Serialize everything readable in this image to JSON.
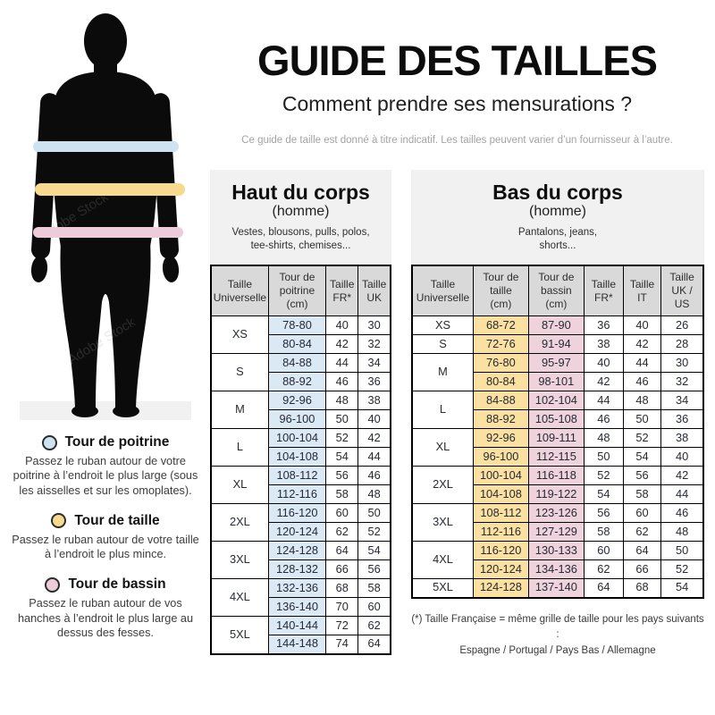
{
  "watermark": "Adobe Stock",
  "header": {
    "title": "GUIDE DES TAILLES",
    "subtitle": "Comment prendre ses mensurations ?",
    "disclaimer": "Ce guide de taille est donné à titre indicatif. Les tailles peuvent varier d’un fournisseur à l’autre."
  },
  "colors": {
    "band_chest": "#cde3f1",
    "band_waist": "#f8da8e",
    "band_hips": "#ecccd8",
    "cell_chest": "#dbe9f5",
    "cell_waist": "#fbe1a1",
    "cell_hips": "#eed2dc",
    "header_gray": "#d9d9d9",
    "panel_gray": "#f1f1f1"
  },
  "legend": [
    {
      "title": "Tour de poitrine",
      "color": "#cde3f1",
      "text": "Passez le ruban autour de votre poitrine à l’endroit le plus large (sous les aisselles et sur les omoplates)."
    },
    {
      "title": "Tour de taille",
      "color": "#f8da8e",
      "text": "Passez le ruban autour de votre taille à l’endroit le plus mince."
    },
    {
      "title": "Tour de bassin",
      "color": "#ecccd8",
      "text": "Passez le ruban autour de vos hanches à l’endroit le plus large au dessus des fesses."
    }
  ],
  "tables": {
    "upper": {
      "title": "Haut du corps",
      "gender": "(homme)",
      "description": "Vestes, blousons, pulls, polos,\ntee-shirts, chemises...",
      "columns": [
        "Taille\nUniverselle",
        "Tour de\npoitrine\n(cm)",
        "Taille\nFR*",
        "Taille\nUK"
      ],
      "col_widths": [
        "32%",
        "32%",
        "18%",
        "18%"
      ],
      "col_classes": [
        "",
        "bg-chest",
        "",
        ""
      ],
      "groups": [
        {
          "size": "XS",
          "rows": [
            [
              "78-80",
              "40",
              "30"
            ],
            [
              "80-84",
              "42",
              "32"
            ]
          ]
        },
        {
          "size": "S",
          "rows": [
            [
              "84-88",
              "44",
              "34"
            ],
            [
              "88-92",
              "46",
              "36"
            ]
          ]
        },
        {
          "size": "M",
          "rows": [
            [
              "92-96",
              "48",
              "38"
            ],
            [
              "96-100",
              "50",
              "40"
            ]
          ]
        },
        {
          "size": "L",
          "rows": [
            [
              "100-104",
              "52",
              "42"
            ],
            [
              "104-108",
              "54",
              "44"
            ]
          ]
        },
        {
          "size": "XL",
          "rows": [
            [
              "108-112",
              "56",
              "46"
            ],
            [
              "112-116",
              "58",
              "48"
            ]
          ]
        },
        {
          "size": "2XL",
          "rows": [
            [
              "116-120",
              "60",
              "50"
            ],
            [
              "120-124",
              "62",
              "52"
            ]
          ]
        },
        {
          "size": "3XL",
          "rows": [
            [
              "124-128",
              "64",
              "54"
            ],
            [
              "128-132",
              "66",
              "56"
            ]
          ]
        },
        {
          "size": "4XL",
          "rows": [
            [
              "132-136",
              "68",
              "58"
            ],
            [
              "136-140",
              "70",
              "60"
            ]
          ]
        },
        {
          "size": "5XL",
          "rows": [
            [
              "140-144",
              "72",
              "62"
            ],
            [
              "144-148",
              "74",
              "64"
            ]
          ]
        }
      ]
    },
    "lower": {
      "title": "Bas du corps",
      "gender": "(homme)",
      "description": "Pantalons, jeans,\nshorts...",
      "columns": [
        "Taille\nUniverselle",
        "Tour de\ntaille\n(cm)",
        "Tour de\nbassin\n(cm)",
        "Taille\nFR*",
        "Taille\nIT",
        "Taille\nUK /\nUS"
      ],
      "col_widths": [
        "21%",
        "19%",
        "19%",
        "13.5%",
        "13%",
        "14.5%"
      ],
      "col_classes": [
        "",
        "bg-waist",
        "bg-hips",
        "",
        "",
        ""
      ],
      "groups": [
        {
          "size": "XS",
          "rows": [
            [
              "68-72",
              "87-90",
              "36",
              "40",
              "26"
            ]
          ]
        },
        {
          "size": "S",
          "rows": [
            [
              "72-76",
              "91-94",
              "38",
              "42",
              "28"
            ]
          ]
        },
        {
          "size": "M",
          "rows": [
            [
              "76-80",
              "95-97",
              "40",
              "44",
              "30"
            ],
            [
              "80-84",
              "98-101",
              "42",
              "46",
              "32"
            ]
          ]
        },
        {
          "size": "L",
          "rows": [
            [
              "84-88",
              "102-104",
              "44",
              "48",
              "34"
            ],
            [
              "88-92",
              "105-108",
              "46",
              "50",
              "36"
            ]
          ]
        },
        {
          "size": "XL",
          "rows": [
            [
              "92-96",
              "109-111",
              "48",
              "52",
              "38"
            ],
            [
              "96-100",
              "112-115",
              "50",
              "54",
              "40"
            ]
          ]
        },
        {
          "size": "2XL",
          "rows": [
            [
              "100-104",
              "116-118",
              "52",
              "56",
              "42"
            ],
            [
              "104-108",
              "119-122",
              "54",
              "58",
              "44"
            ]
          ]
        },
        {
          "size": "3XL",
          "rows": [
            [
              "108-112",
              "123-126",
              "56",
              "60",
              "46"
            ],
            [
              "112-116",
              "127-129",
              "58",
              "62",
              "48"
            ]
          ]
        },
        {
          "size": "4XL",
          "rows": [
            [
              "116-120",
              "130-133",
              "60",
              "64",
              "50"
            ],
            [
              "120-124",
              "134-136",
              "62",
              "66",
              "52"
            ]
          ]
        },
        {
          "size": "5XL",
          "rows": [
            [
              "124-128",
              "137-140",
              "64",
              "68",
              "54"
            ]
          ]
        }
      ]
    }
  },
  "footnote": {
    "line1": "(*) Taille Française = même grille de taille pour les pays suivants :",
    "line2": "Espagne / Portugal / Pays Bas / Allemagne"
  }
}
